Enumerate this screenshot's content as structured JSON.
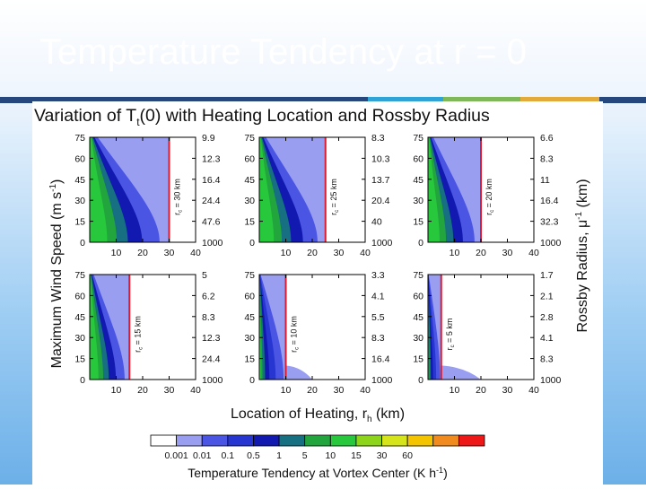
{
  "slide": {
    "title": "Temperature Tendency at r = 0",
    "accent_colors": [
      "#2fa3d6",
      "#7eb859",
      "#e2a93b"
    ],
    "bar_color": "#25477e"
  },
  "chart_data": {
    "type": "heatmap",
    "title": "Variation of Tt(0) with Heating Location and Rossby Radius",
    "title_main": "Variation of T",
    "title_sub": "t",
    "title_rest": "(0) with Heating Location and Rossby Radius",
    "xlabel": "Location of Heating, rh (km)",
    "xlabel_main": "Location of Heating, r",
    "xlabel_sub": "h",
    "xlabel_rest": " (km)",
    "ylabel": "Maximum Wind Speed (m s-1)",
    "ylabel_main": "Maximum Wind Speed (m s",
    "ylabel_sup": "-1",
    "ylabel_rest": ")",
    "y2label": "Rossby Radius, μ-1 (km)",
    "y2label_main": "Rossby Radius, μ",
    "y2label_sup": "-1",
    "y2label_rest": " (km)",
    "xlim": [
      0,
      40
    ],
    "ylim": [
      0,
      75
    ],
    "x_ticks": [
      10,
      20,
      30,
      40
    ],
    "y_ticks": [
      0,
      15,
      30,
      45,
      60,
      75
    ],
    "panels": [
      {
        "rc_label": "r",
        "rc_sub": "c",
        "rc_rest": " = 30 km",
        "rc": 30,
        "right_ticks": [
          "1000",
          "47.6",
          "24.4",
          "16.4",
          "12.3",
          "9.9"
        ]
      },
      {
        "rc_label": "r",
        "rc_sub": "c",
        "rc_rest": " = 25 km",
        "rc": 25,
        "right_ticks": [
          "1000",
          "40",
          "20.4",
          "13.7",
          "10.3",
          "8.3"
        ]
      },
      {
        "rc_label": "r",
        "rc_sub": "c",
        "rc_rest": " = 20 km",
        "rc": 20,
        "right_ticks": [
          "1000",
          "32.3",
          "16.4",
          "11",
          "8.3",
          "6.6"
        ]
      },
      {
        "rc_label": "r",
        "rc_sub": "c",
        "rc_rest": " = 15 km",
        "rc": 15,
        "right_ticks": [
          "1000",
          "24.4",
          "12.3",
          "8.3",
          "6.2",
          "5"
        ]
      },
      {
        "rc_label": "r",
        "rc_sub": "c",
        "rc_rest": " = 10 km",
        "rc": 10,
        "right_ticks": [
          "1000",
          "16.4",
          "8.3",
          "5.5",
          "4.1",
          "3.3"
        ]
      },
      {
        "rc_label": "r",
        "rc_sub": "c",
        "rc_rest": " = 5 km",
        "rc": 5,
        "right_ticks": [
          "1000",
          "8.3",
          "4.1",
          "2.8",
          "2.1",
          "1.7"
        ]
      }
    ],
    "colorbar": {
      "label": "Temperature Tendency at Vortex Center (K h-1)",
      "label_main": "Temperature Tendency at Vortex Center (K h",
      "label_sup": "-1",
      "label_rest": ")",
      "levels": [
        "0.001",
        "0.01",
        "0.1",
        "0.5",
        "1",
        "5",
        "10",
        "15",
        "30",
        "60"
      ],
      "colors": [
        "#ffffff",
        "#9a9ef0",
        "#4a55e4",
        "#2736d1",
        "#1219b0",
        "#176f82",
        "#23a53e",
        "#27c83c",
        "#8dd51b",
        "#d6e51b",
        "#f4c400",
        "#f18a1f",
        "#ef1818"
      ]
    },
    "rc_line_color": "#e01a2a",
    "grid": false
  }
}
